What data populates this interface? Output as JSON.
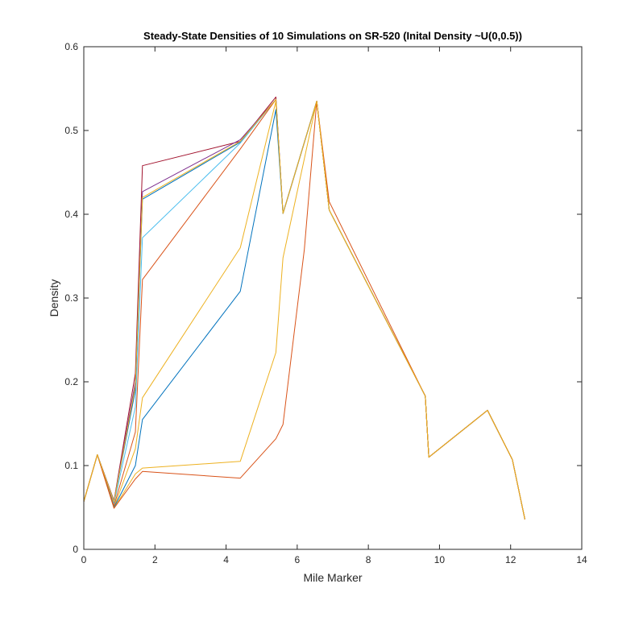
{
  "chart_data": {
    "type": "line",
    "title": "Steady-State Densities of 10 Simulations on SR-520 (Inital Density ~U(0,0.5))",
    "xlabel": "Mile Marker",
    "ylabel": "Density",
    "xlim": [
      0,
      14
    ],
    "ylim": [
      0,
      0.6
    ],
    "xticks": [
      0,
      2,
      4,
      6,
      8,
      10,
      12,
      14
    ],
    "yticks": [
      0,
      0.1,
      0.2,
      0.3,
      0.4,
      0.5,
      0.6
    ],
    "xtick_labels": [
      "0",
      "2",
      "4",
      "6",
      "8",
      "10",
      "12",
      "14"
    ],
    "ytick_labels": [
      "0",
      "0.1",
      "0.2",
      "0.3",
      "0.4",
      "0.5",
      "0.6"
    ],
    "grid": false,
    "legend": false,
    "series": [
      {
        "color": "#A2142F",
        "x": [
          0,
          0.38,
          0.85,
          1.45,
          1.65,
          4.4,
          5.4,
          5.6,
          6.55,
          6.9,
          9.6,
          9.7,
          11.35,
          12.05,
          12.4
        ],
        "y": [
          0.057,
          0.113,
          0.058,
          0.21,
          0.458,
          0.487,
          0.54,
          0.401,
          0.535,
          0.405,
          0.183,
          0.11,
          0.166,
          0.107,
          0.036
        ]
      },
      {
        "color": "#7E2F8E",
        "x": [
          0,
          0.38,
          0.85,
          1.45,
          1.65,
          4.4,
          5.4,
          5.6,
          6.55,
          6.9,
          9.6,
          9.7,
          11.35,
          12.05,
          12.4
        ],
        "y": [
          0.057,
          0.113,
          0.058,
          0.2,
          0.427,
          0.489,
          0.537,
          0.401,
          0.535,
          0.405,
          0.183,
          0.11,
          0.166,
          0.107,
          0.036
        ]
      },
      {
        "color": "#0072BD",
        "x": [
          0,
          0.38,
          0.85,
          1.45,
          1.65,
          4.4,
          5.4,
          5.6,
          6.55,
          6.9,
          9.6,
          9.7,
          11.35,
          12.05,
          12.4
        ],
        "y": [
          0.057,
          0.113,
          0.057,
          0.19,
          0.418,
          0.486,
          0.537,
          0.401,
          0.535,
          0.405,
          0.183,
          0.11,
          0.166,
          0.107,
          0.036
        ]
      },
      {
        "color": "#4DBEEE",
        "x": [
          0,
          0.38,
          0.85,
          1.45,
          1.65,
          4.4,
          5.4,
          5.6,
          6.55,
          6.9,
          9.6,
          9.7,
          11.35,
          12.05,
          12.4
        ],
        "y": [
          0.057,
          0.113,
          0.055,
          0.17,
          0.372,
          0.485,
          0.537,
          0.401,
          0.535,
          0.405,
          0.183,
          0.11,
          0.166,
          0.107,
          0.036
        ]
      },
      {
        "color": "#D95319",
        "x": [
          0,
          0.38,
          0.85,
          1.45,
          1.65,
          4.4,
          5.4,
          5.6,
          6.55,
          6.9,
          9.6,
          9.7,
          11.35,
          12.05,
          12.4
        ],
        "y": [
          0.057,
          0.113,
          0.052,
          0.14,
          0.322,
          0.478,
          0.537,
          0.401,
          0.535,
          0.405,
          0.183,
          0.11,
          0.166,
          0.107,
          0.036
        ]
      },
      {
        "color": "#EDB120",
        "x": [
          0,
          0.38,
          0.85,
          1.45,
          1.65,
          4.4,
          5.4,
          5.6,
          6.55,
          6.9,
          9.6,
          9.7,
          11.35,
          12.05,
          12.4
        ],
        "y": [
          0.057,
          0.113,
          0.05,
          0.12,
          0.181,
          0.36,
          0.535,
          0.401,
          0.535,
          0.405,
          0.183,
          0.11,
          0.166,
          0.107,
          0.036
        ]
      },
      {
        "color": "#0072BD",
        "x": [
          0,
          0.38,
          0.85,
          1.45,
          1.65,
          4.4,
          5.4,
          5.6,
          6.55,
          6.9,
          9.6,
          9.7,
          11.35,
          12.05,
          12.4
        ],
        "y": [
          0.057,
          0.113,
          0.05,
          0.1,
          0.155,
          0.308,
          0.525,
          0.401,
          0.535,
          0.405,
          0.183,
          0.11,
          0.166,
          0.107,
          0.036
        ]
      },
      {
        "color": "#EDB120",
        "x": [
          0,
          0.38,
          0.85,
          1.45,
          1.65,
          4.4,
          5.4,
          5.6,
          6.55,
          6.9,
          9.6,
          9.7,
          11.35,
          12.05,
          12.4
        ],
        "y": [
          0.057,
          0.113,
          0.049,
          0.09,
          0.097,
          0.105,
          0.235,
          0.348,
          0.535,
          0.405,
          0.183,
          0.11,
          0.166,
          0.107,
          0.036
        ]
      },
      {
        "color": "#D95319",
        "x": [
          0,
          0.38,
          0.85,
          1.45,
          1.65,
          4.4,
          5.4,
          5.6,
          6.2,
          6.55,
          6.9,
          9.6,
          9.7,
          11.35,
          12.05,
          12.4
        ],
        "y": [
          0.057,
          0.113,
          0.049,
          0.084,
          0.093,
          0.085,
          0.132,
          0.149,
          0.358,
          0.535,
          0.415,
          0.183,
          0.11,
          0.166,
          0.107,
          0.036
        ]
      },
      {
        "color": "#EDB120",
        "x": [
          0,
          0.38,
          0.85,
          1.45,
          1.65,
          4.4,
          5.4,
          5.6,
          6.55,
          6.9,
          9.6,
          9.7,
          11.35,
          12.05,
          12.4
        ],
        "y": [
          0.057,
          0.113,
          0.057,
          0.195,
          0.42,
          0.487,
          0.537,
          0.401,
          0.535,
          0.405,
          0.183,
          0.11,
          0.166,
          0.107,
          0.036
        ]
      }
    ]
  }
}
